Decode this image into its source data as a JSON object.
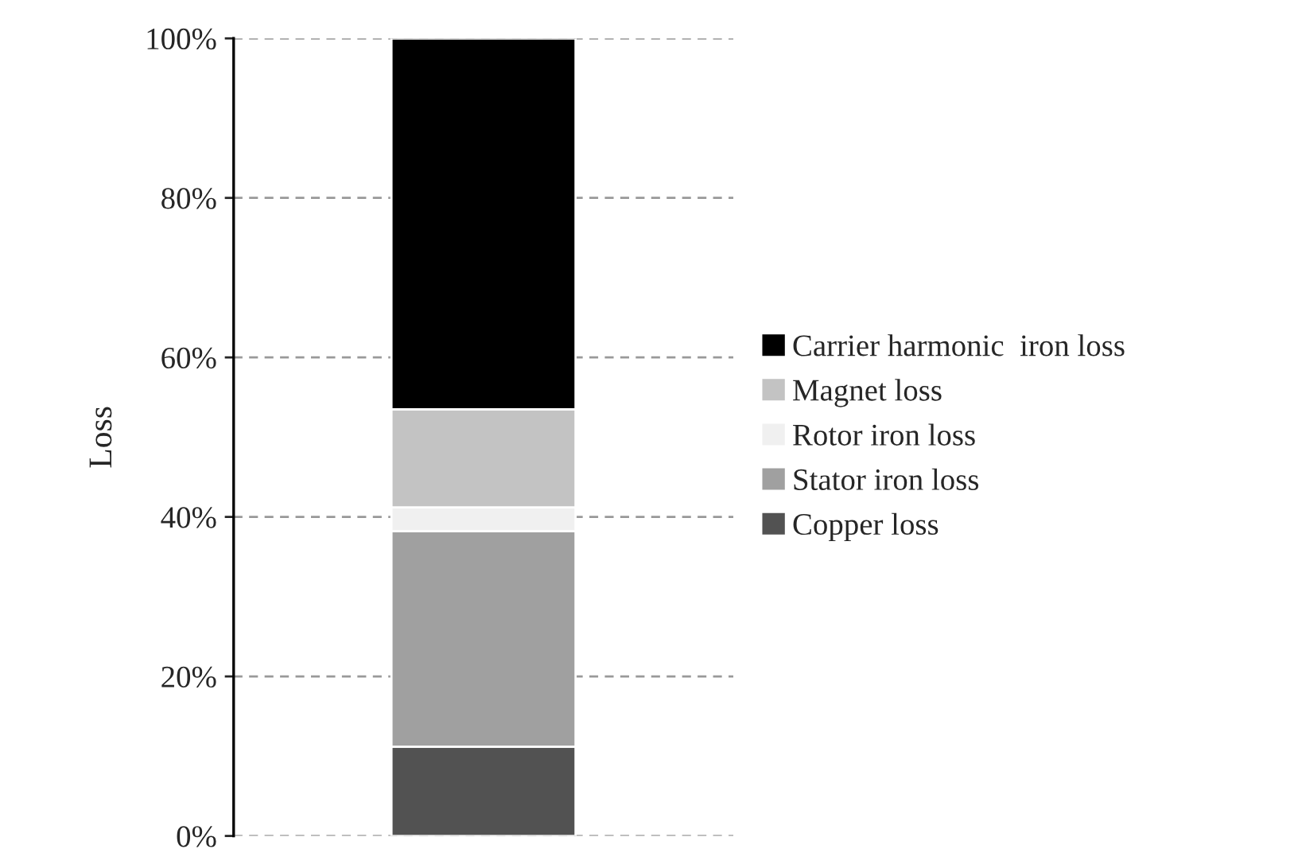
{
  "chart_data": {
    "type": "bar",
    "stacked": true,
    "ylabel": "Loss",
    "categories": [
      null
    ],
    "series": [
      {
        "name": "Copper loss",
        "color": "#525252",
        "values": [
          11.2
        ]
      },
      {
        "name": "Stator iron loss",
        "color": "#a0a0a0",
        "values": [
          27
        ]
      },
      {
        "name": "Rotor iron loss",
        "color": "#f0f0f0",
        "values": [
          3
        ]
      },
      {
        "name": "Magnet loss",
        "color": "#c3c3c3",
        "values": [
          12.3
        ]
      },
      {
        "name": "Carrier harmonic  iron loss",
        "color": "#000000",
        "values": [
          46.5
        ]
      }
    ],
    "ylim": [
      0,
      100
    ],
    "yticks": [
      {
        "value": 0,
        "label": "0%"
      },
      {
        "value": 20,
        "label": "20%"
      },
      {
        "value": 40,
        "label": "40%"
      },
      {
        "value": 60,
        "label": "60%"
      },
      {
        "value": 80,
        "label": "80%"
      },
      {
        "value": 100,
        "label": "100%"
      }
    ],
    "grid": "y",
    "legend": "right",
    "tick_labels": "y"
  }
}
